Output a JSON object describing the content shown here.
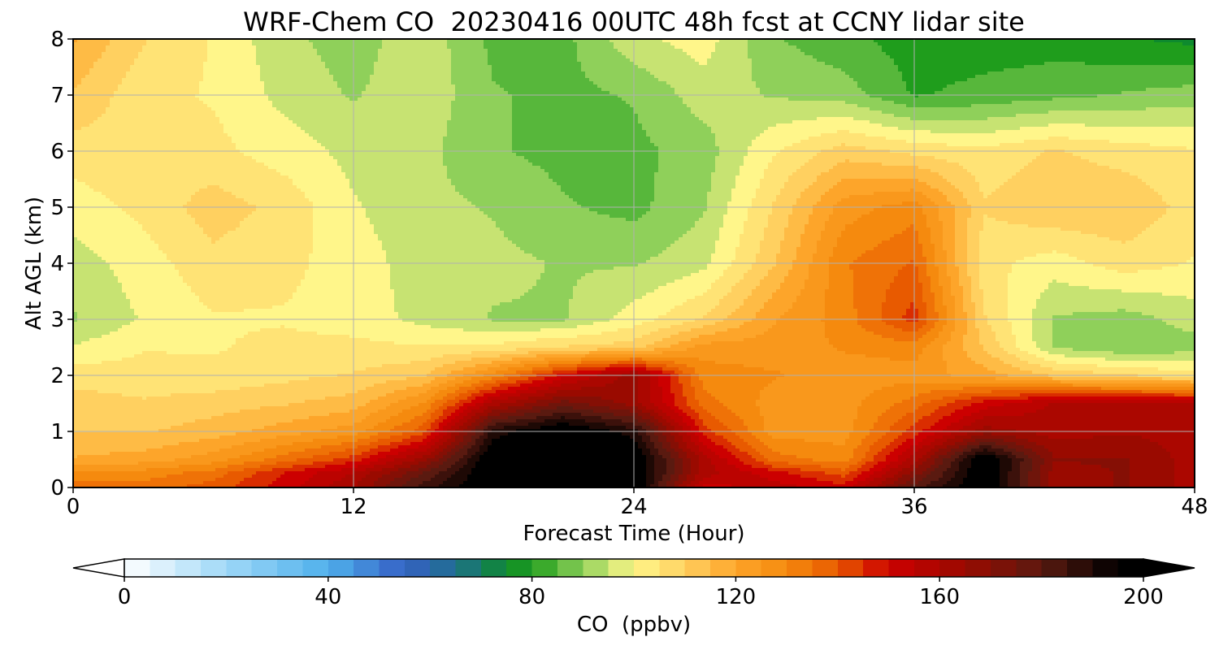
{
  "chart_data": {
    "type": "heatmap",
    "subtype": "filled-contour",
    "title": "WRF-Chem CO  20230416 00UTC 48h fcst at CCNY lidar site",
    "xlabel": "Forecast Time (Hour)",
    "ylabel": "Alt AGL (km)",
    "xlim": [
      0,
      48
    ],
    "ylim": [
      0,
      8
    ],
    "xticks": [
      0,
      12,
      24,
      36,
      48
    ],
    "yticks": [
      0,
      1,
      2,
      3,
      4,
      5,
      6,
      7,
      8
    ],
    "grid": true,
    "colorbar": {
      "label": "CO  (ppbv)",
      "range": [
        0,
        200
      ],
      "ticks": [
        0,
        40,
        80,
        120,
        160,
        200
      ],
      "extend": "both",
      "orientation": "horizontal",
      "colormap_stops": [
        {
          "value": 0,
          "color": "#ffffff"
        },
        {
          "value": 20,
          "color": "#9fd8f7"
        },
        {
          "value": 40,
          "color": "#4fb0ec"
        },
        {
          "value": 55,
          "color": "#3560c4"
        },
        {
          "value": 65,
          "color": "#1f6f8e"
        },
        {
          "value": 75,
          "color": "#0e8a2e"
        },
        {
          "value": 80,
          "color": "#1f9d1c"
        },
        {
          "value": 90,
          "color": "#8fd05a"
        },
        {
          "value": 100,
          "color": "#fff68a"
        },
        {
          "value": 110,
          "color": "#ffd060"
        },
        {
          "value": 120,
          "color": "#fda52a"
        },
        {
          "value": 130,
          "color": "#f58a0e"
        },
        {
          "value": 140,
          "color": "#e85a00"
        },
        {
          "value": 150,
          "color": "#cc0000"
        },
        {
          "value": 165,
          "color": "#9a0a00"
        },
        {
          "value": 180,
          "color": "#5a1a10"
        },
        {
          "value": 195,
          "color": "#000000"
        },
        {
          "value": 200,
          "color": "#000000"
        }
      ]
    },
    "x": [
      0,
      3,
      6,
      9,
      12,
      15,
      18,
      21,
      24,
      27,
      30,
      33,
      36,
      39,
      42,
      45,
      48
    ],
    "y": [
      0,
      0.25,
      0.5,
      1,
      1.5,
      2,
      2.5,
      3,
      4,
      5,
      6,
      7,
      8
    ],
    "z": [
      [
        138,
        135,
        140,
        150,
        162,
        185,
        200,
        200,
        200,
        150,
        155,
        150,
        180,
        200,
        165,
        168,
        160
      ],
      [
        128,
        130,
        135,
        148,
        158,
        178,
        200,
        200,
        200,
        160,
        150,
        140,
        170,
        200,
        165,
        168,
        160
      ],
      [
        118,
        120,
        125,
        135,
        145,
        165,
        200,
        200,
        200,
        160,
        135,
        130,
        160,
        200,
        168,
        168,
        160
      ],
      [
        112,
        112,
        115,
        120,
        125,
        140,
        190,
        200,
        190,
        145,
        125,
        125,
        145,
        165,
        160,
        162,
        160
      ],
      [
        110,
        108,
        110,
        112,
        115,
        128,
        160,
        175,
        165,
        135,
        125,
        125,
        135,
        150,
        158,
        160,
        158
      ],
      [
        105,
        105,
        104,
        106,
        108,
        112,
        130,
        150,
        165,
        130,
        128,
        125,
        125,
        120,
        112,
        108,
        105
      ],
      [
        98,
        102,
        102,
        104,
        104,
        103,
        104,
        108,
        110,
        125,
        125,
        128,
        130,
        112,
        92,
        88,
        90
      ],
      [
        92,
        98,
        102,
        102,
        100,
        96,
        92,
        92,
        100,
        108,
        122,
        130,
        145,
        108,
        92,
        90,
        95
      ],
      [
        95,
        100,
        106,
        104,
        100,
        95,
        94,
        92,
        92,
        96,
        112,
        132,
        138,
        104,
        100,
        105,
        102
      ],
      [
        100,
        104,
        110,
        106,
        98,
        94,
        92,
        88,
        86,
        92,
        108,
        125,
        130,
        108,
        112,
        112,
        105
      ],
      [
        105,
        106,
        104,
        100,
        96,
        94,
        88,
        86,
        86,
        90,
        102,
        110,
        106,
        104,
        108,
        105,
        103
      ],
      [
        112,
        104,
        102,
        96,
        92,
        96,
        88,
        86,
        88,
        95,
        92,
        90,
        82,
        84,
        86,
        88,
        90
      ],
      [
        118,
        108,
        102,
        94,
        90,
        96,
        86,
        86,
        96,
        100,
        88,
        84,
        80,
        80,
        80,
        78,
        76
      ]
    ]
  }
}
